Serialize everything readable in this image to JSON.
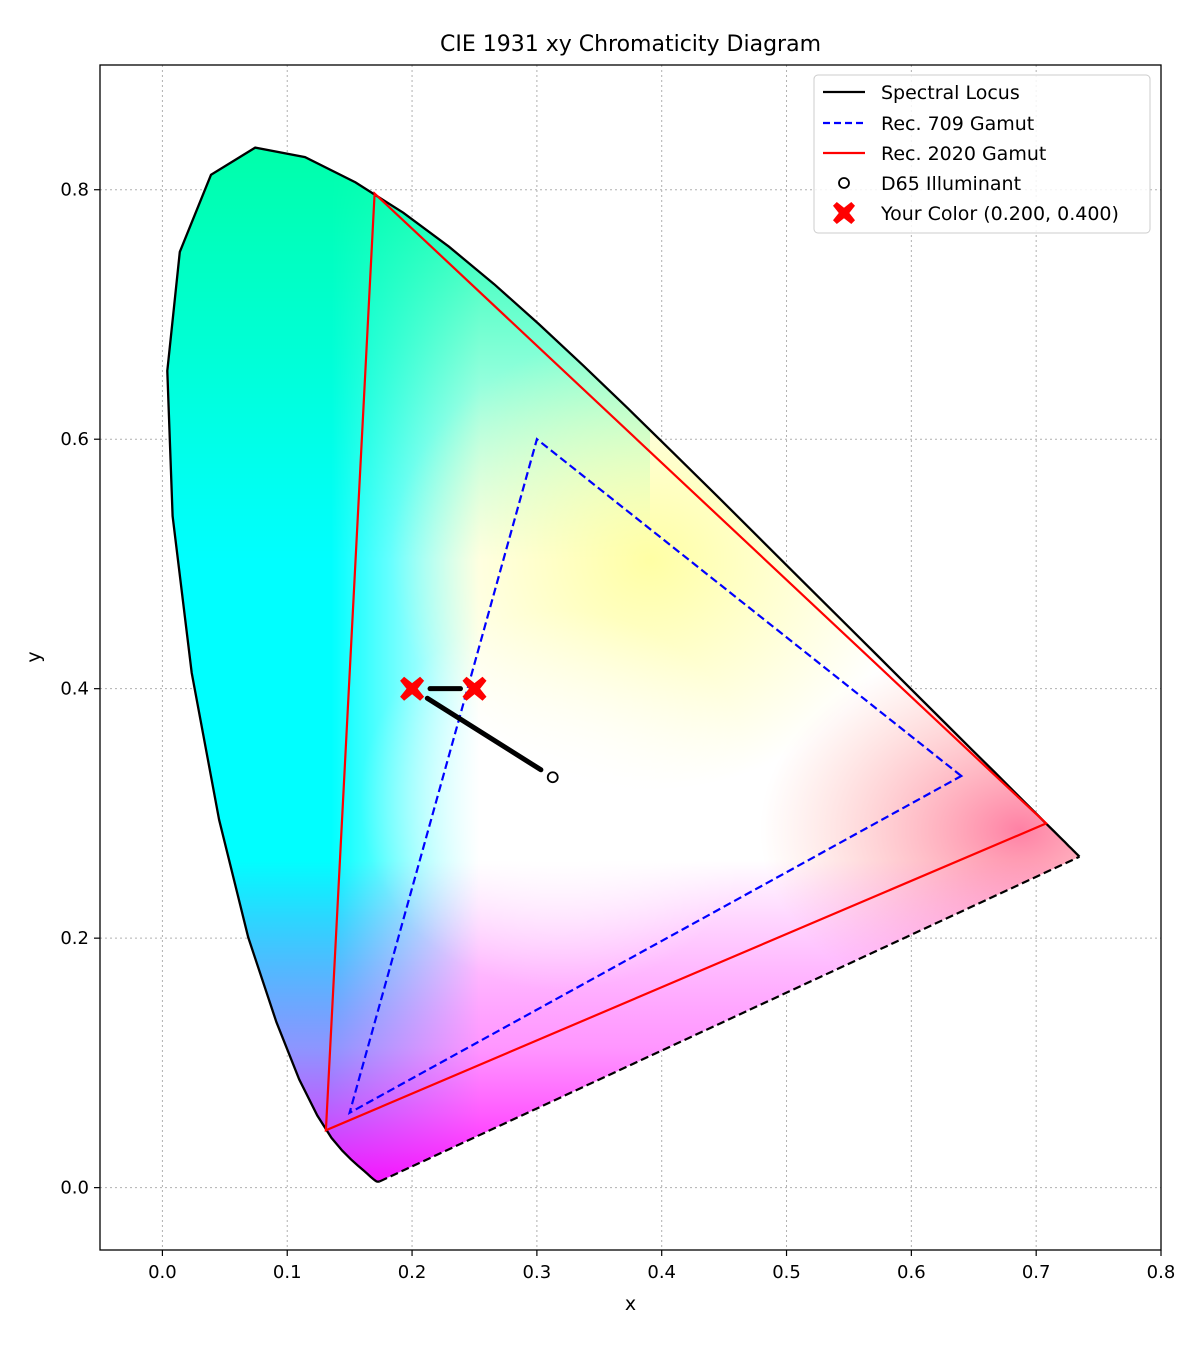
{
  "chart_data": {
    "type": "scatter",
    "title": "CIE 1931 xy Chromaticity Diagram",
    "xlabel": "x",
    "ylabel": "y",
    "xlim": [
      -0.05,
      0.8
    ],
    "ylim": [
      -0.05,
      0.9
    ],
    "x_ticks": [
      "0.0",
      "0.1",
      "0.2",
      "0.3",
      "0.4",
      "0.5",
      "0.6",
      "0.7",
      "0.8"
    ],
    "y_ticks": [
      "0.0",
      "0.2",
      "0.4",
      "0.6",
      "0.8"
    ],
    "grid": true,
    "legend_position": "top-right",
    "spectral_locus": [
      [
        0.1741,
        0.005
      ],
      [
        0.1738,
        0.0049
      ],
      [
        0.1736,
        0.0049
      ],
      [
        0.1733,
        0.0048
      ],
      [
        0.173,
        0.0048
      ],
      [
        0.1726,
        0.0048
      ],
      [
        0.1721,
        0.0048
      ],
      [
        0.1714,
        0.0051
      ],
      [
        0.1703,
        0.0058
      ],
      [
        0.1689,
        0.0069
      ],
      [
        0.1669,
        0.0086
      ],
      [
        0.1644,
        0.0109
      ],
      [
        0.1611,
        0.0138
      ],
      [
        0.1566,
        0.0177
      ],
      [
        0.151,
        0.0227
      ],
      [
        0.144,
        0.0297
      ],
      [
        0.1355,
        0.0399
      ],
      [
        0.1241,
        0.0578
      ],
      [
        0.1096,
        0.0868
      ],
      [
        0.0913,
        0.1327
      ],
      [
        0.0687,
        0.2007
      ],
      [
        0.0454,
        0.295
      ],
      [
        0.0235,
        0.4127
      ],
      [
        0.0082,
        0.5384
      ],
      [
        0.0039,
        0.6548
      ],
      [
        0.0139,
        0.7502
      ],
      [
        0.0389,
        0.812
      ],
      [
        0.0743,
        0.8338
      ],
      [
        0.1142,
        0.8262
      ],
      [
        0.1547,
        0.8059
      ],
      [
        0.1929,
        0.7816
      ],
      [
        0.2296,
        0.7543
      ],
      [
        0.2658,
        0.7243
      ],
      [
        0.3016,
        0.6923
      ],
      [
        0.3373,
        0.6589
      ],
      [
        0.3731,
        0.6245
      ],
      [
        0.4087,
        0.5896
      ],
      [
        0.4441,
        0.5547
      ],
      [
        0.4788,
        0.5202
      ],
      [
        0.5125,
        0.4866
      ],
      [
        0.5448,
        0.4544
      ],
      [
        0.5752,
        0.4242
      ],
      [
        0.6029,
        0.3965
      ],
      [
        0.627,
        0.3725
      ],
      [
        0.6482,
        0.3514
      ],
      [
        0.6658,
        0.334
      ],
      [
        0.6801,
        0.3197
      ],
      [
        0.6915,
        0.3083
      ],
      [
        0.7006,
        0.2993
      ],
      [
        0.7079,
        0.292
      ],
      [
        0.714,
        0.2859
      ],
      [
        0.719,
        0.2809
      ],
      [
        0.723,
        0.277
      ],
      [
        0.726,
        0.274
      ],
      [
        0.7283,
        0.2717
      ],
      [
        0.73,
        0.27
      ],
      [
        0.7311,
        0.2689
      ],
      [
        0.732,
        0.268
      ],
      [
        0.7327,
        0.2673
      ],
      [
        0.7334,
        0.2666
      ],
      [
        0.734,
        0.266
      ],
      [
        0.7344,
        0.2656
      ],
      [
        0.7346,
        0.2654
      ],
      [
        0.7347,
        0.2653
      ]
    ],
    "series": [
      {
        "name": "Spectral Locus",
        "color": "#000000",
        "style": "solid"
      },
      {
        "name": "Rec. 709 Gamut",
        "color": "#0000ff",
        "style": "dashed",
        "points": [
          [
            0.64,
            0.33
          ],
          [
            0.3,
            0.6
          ],
          [
            0.15,
            0.06
          ]
        ]
      },
      {
        "name": "Rec. 2020 Gamut",
        "color": "#ff0000",
        "style": "solid",
        "points": [
          [
            0.708,
            0.292
          ],
          [
            0.17,
            0.797
          ],
          [
            0.131,
            0.046
          ]
        ]
      },
      {
        "name": "D65 Illuminant",
        "color": "#000000",
        "marker": "circle",
        "points": [
          [
            0.3127,
            0.329
          ]
        ]
      },
      {
        "name": "Your Color (0.200, 0.400)",
        "color": "#ff0000",
        "marker": "x",
        "points": [
          [
            0.2,
            0.4
          ],
          [
            0.25,
            0.4
          ]
        ]
      }
    ],
    "arrows": [
      {
        "from": [
          0.3127,
          0.329
        ],
        "to": [
          0.2,
          0.4
        ]
      },
      {
        "from": [
          0.25,
          0.4
        ],
        "to": [
          0.2,
          0.4
        ]
      }
    ]
  }
}
